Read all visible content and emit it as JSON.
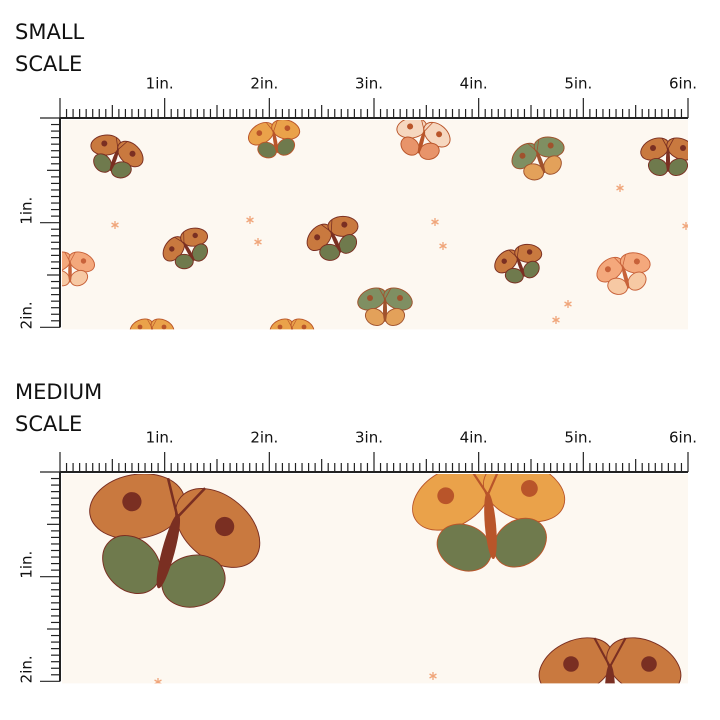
{
  "sections": [
    {
      "title": [
        "SMALL",
        "SCALE"
      ],
      "ruler_x": [
        "1in.",
        "2in.",
        "3in.",
        "4in.",
        "5in.",
        "6in."
      ],
      "ruler_y": [
        "1in.",
        "2in."
      ]
    },
    {
      "title": [
        "MEDIUM",
        "SCALE"
      ],
      "ruler_x": [
        "1in.",
        "2in.",
        "3in.",
        "4in.",
        "5in.",
        "6in."
      ],
      "ruler_y": [
        "1in.",
        "2in."
      ]
    }
  ]
}
